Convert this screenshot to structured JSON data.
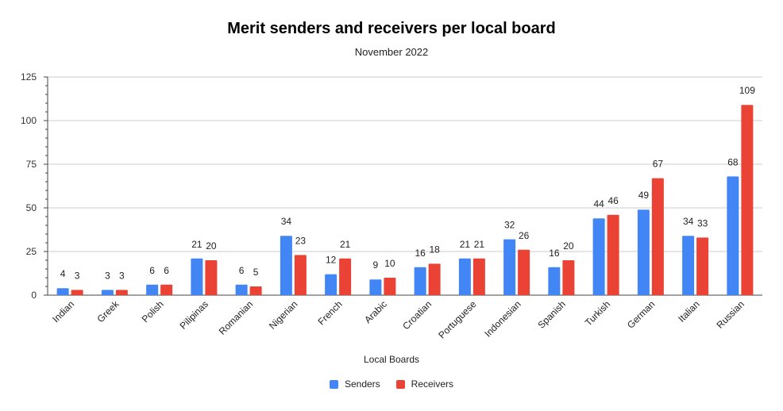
{
  "chart_data": {
    "type": "bar",
    "title": "Merit senders and receivers per local board",
    "subtitle": "November 2022",
    "xlabel": "Local Boards",
    "ylabel": "",
    "ylim": [
      0,
      125
    ],
    "yticks": [
      0,
      25,
      50,
      75,
      100,
      125
    ],
    "grid": true,
    "legend_position": "bottom",
    "categories": [
      "Indian",
      "Greek",
      "Polish",
      "Pilipinas",
      "Romanian",
      "Nigerian",
      "French",
      "Arabic",
      "Croatian",
      "Portuguese",
      "Indonesian",
      "Spanish",
      "Turkish",
      "German",
      "Italian",
      "Russian"
    ],
    "series": [
      {
        "name": "Senders",
        "color": "#4285f4",
        "values": [
          4,
          3,
          6,
          21,
          6,
          34,
          12,
          9,
          16,
          21,
          32,
          16,
          44,
          49,
          34,
          68
        ]
      },
      {
        "name": "Receivers",
        "color": "#ea4335",
        "values": [
          3,
          3,
          6,
          20,
          5,
          23,
          21,
          10,
          18,
          21,
          26,
          20,
          46,
          67,
          33,
          109
        ]
      }
    ]
  }
}
